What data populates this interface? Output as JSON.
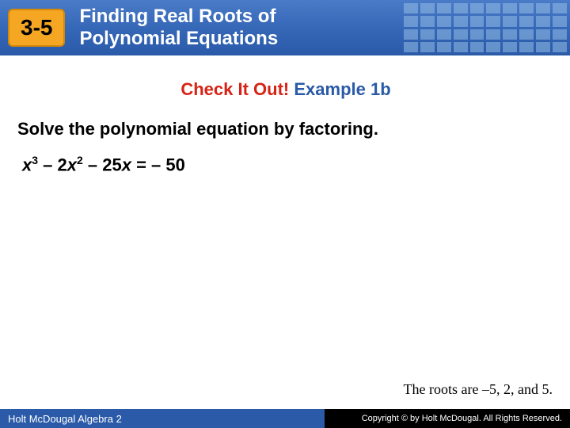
{
  "header": {
    "section_label": "3-5",
    "title_line1": "Finding Real Roots of",
    "title_line2": "Polynomial Equations",
    "bg_gradient_top": "#4a7bc8",
    "bg_gradient_bottom": "#2a5aa8",
    "label_bg": "#f5a623",
    "label_border": "#d48806",
    "grid_square_color": "rgba(150,190,230,0.55)"
  },
  "content": {
    "check_label": "Check It Out!",
    "example_label": " Example 1b",
    "check_color": "#d62315",
    "example_color": "#2a5aa8",
    "instruction": "Solve the polynomial equation by factoring.",
    "equation_plain": "x^3 – 2x^2 – 25x = –50",
    "roots_text": "The roots are –5, 2, and 5."
  },
  "footer": {
    "left_text": "Holt McDougal Algebra 2",
    "right_text": "Copyright © by Holt McDougal. All Rights Reserved.",
    "left_bg": "#2a5aa8",
    "right_bg": "#000000"
  }
}
